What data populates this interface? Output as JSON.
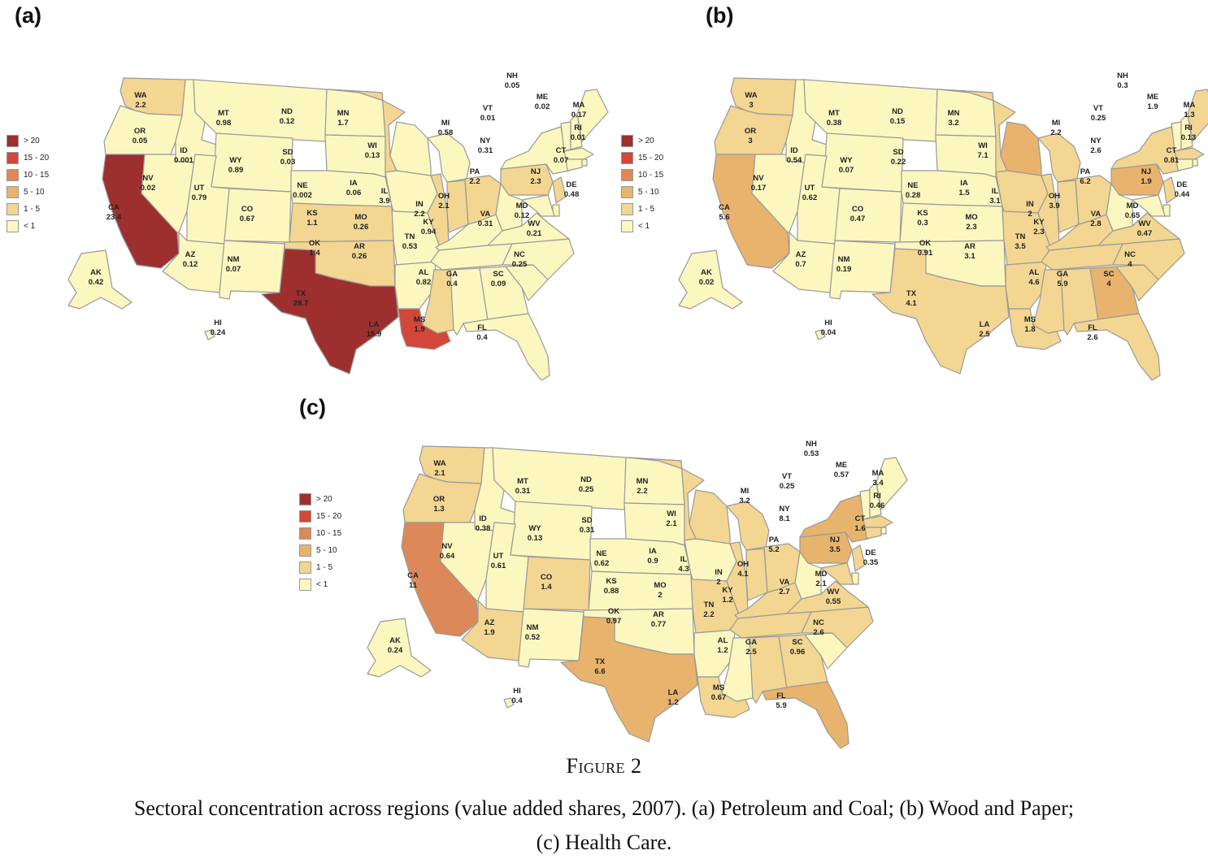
{
  "legend": {
    "bins": [
      {
        "label": "> 20",
        "color": "#9e2f2f"
      },
      {
        "label": "15 - 20",
        "color": "#d2473a"
      },
      {
        "label": "10 - 15",
        "color": "#dd8858"
      },
      {
        "label": "5 - 10",
        "color": "#e8b36c"
      },
      {
        "label": "1 - 5",
        "color": "#f2d692"
      },
      {
        "label": "< 1",
        "color": "#fbf7bf"
      }
    ]
  },
  "caption": {
    "title": "Figure 2",
    "line1": "Sectoral concentration across regions (value added shares, 2007). (a) Petroleum and Coal; (b) Wood and Paper;",
    "line2": "(c) Health Care."
  },
  "panels": [
    {
      "label": "(a)",
      "values": {
        "WA": "2.2",
        "OR": "0.05",
        "CA": "23.4",
        "ID": "0.001",
        "NV": "0.02",
        "MT": "0.98",
        "WY": "0.89",
        "UT": "0.79",
        "AZ": "0.12",
        "CO": "0.67",
        "NM": "0.07",
        "ND": "0.12",
        "SD": "0.03",
        "NE": "0.002",
        "KS": "1.1",
        "OK": "1.4",
        "TX": "28.7",
        "MN": "1.7",
        "IA": "0.06",
        "MO": "0.26",
        "AR": "0.26",
        "LA": "15.9",
        "WI": "0.13",
        "IL": "3.9",
        "MI": "0.58",
        "IN": "2.2",
        "OH": "2.1",
        "KY": "0.94",
        "TN": "0.53",
        "MS": "1.9",
        "AL": "0.82",
        "GA": "0.4",
        "FL": "0.4",
        "SC": "0.09",
        "NC": "0.25",
        "VA": "0.31",
        "WV": "0.21",
        "PA": "2.2",
        "NY": "0.31",
        "VT": "0.01",
        "NH": "0.05",
        "ME": "0.02",
        "MA": "0.17",
        "RI": "0.01",
        "CT": "0.07",
        "NJ": "2.3",
        "DE": "0.48",
        "MD": "0.12",
        "AK": "0.42",
        "HI": "0.24"
      }
    },
    {
      "label": "(b)",
      "values": {
        "WA": "3",
        "OR": "3",
        "CA": "5.6",
        "ID": "0.54",
        "NV": "0.17",
        "MT": "0.38",
        "WY": "0.07",
        "UT": "0.62",
        "AZ": "0.7",
        "CO": "0.47",
        "NM": "0.19",
        "ND": "0.15",
        "SD": "0.22",
        "NE": "0.28",
        "KS": "0.3",
        "OK": "0.91",
        "TX": "4.1",
        "MN": "3.2",
        "IA": "1.5",
        "MO": "2.3",
        "AR": "3.1",
        "LA": "2.5",
        "WI": "7.1",
        "IL": "3.1",
        "MI": "2.2",
        "IN": "2",
        "OH": "3.9",
        "KY": "2.3",
        "TN": "3.5",
        "MS": "1.8",
        "AL": "4.6",
        "GA": "5.9",
        "FL": "2.6",
        "SC": "4",
        "NC": "4",
        "VA": "2.8",
        "WV": "0.47",
        "PA": "6.2",
        "NY": "2.6",
        "VT": "0.25",
        "NH": "0.3",
        "ME": "1.9",
        "MA": "1.3",
        "RI": "0.13",
        "CT": "0.81",
        "NJ": "1.9",
        "DE": "0.44",
        "MD": "0.65",
        "AK": "0.02",
        "HI": "0.04"
      }
    },
    {
      "label": "(c)",
      "values": {
        "WA": "2.1",
        "OR": "1.3",
        "CA": "11",
        "ID": "0.38",
        "NV": "0.64",
        "MT": "0.31",
        "WY": "0.13",
        "UT": "0.61",
        "AZ": "1.9",
        "CO": "1.4",
        "NM": "0.52",
        "ND": "0.25",
        "SD": "0.31",
        "NE": "0.62",
        "KS": "0.88",
        "OK": "0.97",
        "TX": "6.6",
        "MN": "2.2",
        "IA": "0.9",
        "MO": "2",
        "AR": "0.77",
        "LA": "1.2",
        "WI": "2.1",
        "IL": "4.3",
        "MI": "3.2",
        "IN": "2",
        "OH": "4.1",
        "KY": "1.2",
        "TN": "2.2",
        "MS": "0.67",
        "AL": "1.2",
        "GA": "2.5",
        "FL": "5.9",
        "SC": "0.96",
        "NC": "2.6",
        "VA": "2.7",
        "WV": "0.55",
        "PA": "5.2",
        "NY": "8.1",
        "VT": "0.25",
        "NH": "0.53",
        "ME": "0.57",
        "MA": "3.4",
        "RI": "0.46",
        "CT": "1.6",
        "NJ": "3.5",
        "DE": "0.35",
        "MD": "2.1",
        "AK": "0.24",
        "HI": "0.4"
      }
    }
  ]
}
